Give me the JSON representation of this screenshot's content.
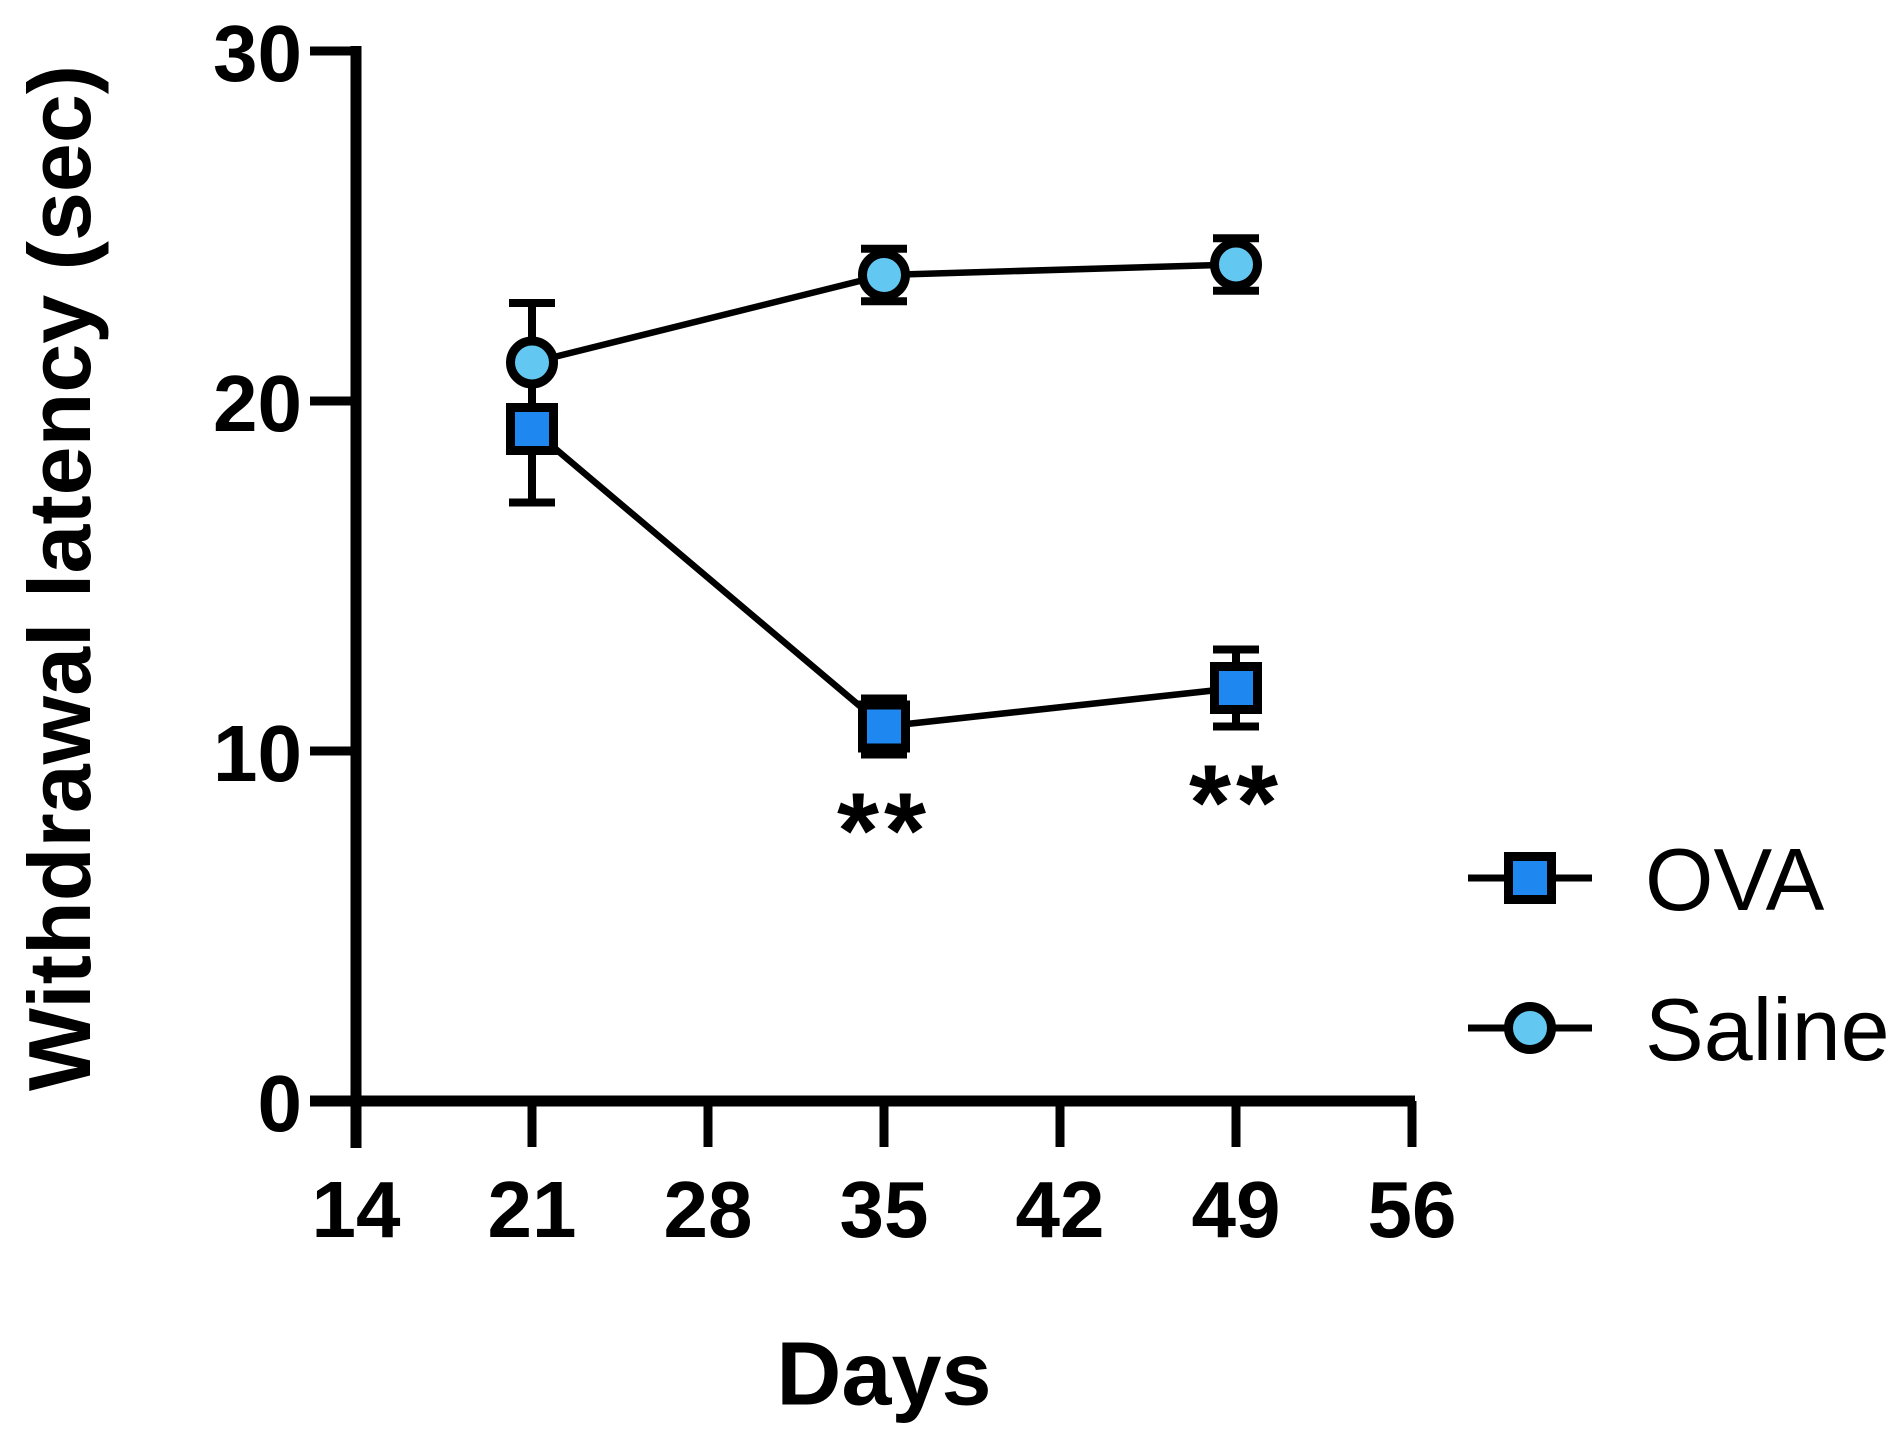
{
  "figure": {
    "background": "#FFFFFF",
    "axis_color": "#000000",
    "text_color": "#000000"
  },
  "chart_data": {
    "type": "line",
    "title": "",
    "xlabel": "Days",
    "ylabel": "Withdrawal latency (sec)",
    "x": [
      21,
      35,
      49
    ],
    "series": [
      {
        "name": "OVA",
        "marker": "square",
        "color": "#1E87F0",
        "line_color": "#000000",
        "values": [
          19.2,
          10.7,
          11.8
        ],
        "errors": [
          2.1,
          0.8,
          1.1
        ]
      },
      {
        "name": "Saline",
        "marker": "circle",
        "color": "#62C8F2",
        "line_color": "#000000",
        "values": [
          21.1,
          23.6,
          23.9
        ],
        "errors": [
          1.7,
          0.75,
          0.75
        ]
      }
    ],
    "annotations": [
      {
        "text": "**",
        "x": 35,
        "series": "OVA"
      },
      {
        "text": "**",
        "x": 49,
        "series": "OVA"
      }
    ],
    "x_ticks": [
      14,
      21,
      28,
      35,
      42,
      49,
      56
    ],
    "y_ticks": [
      0,
      10,
      20,
      30
    ],
    "xlim": [
      14,
      56
    ],
    "ylim": [
      0,
      30
    ],
    "grid": false,
    "error_bars": "symmetric",
    "legend_position": "right-lower",
    "legend": [
      "OVA",
      "Saline"
    ]
  }
}
